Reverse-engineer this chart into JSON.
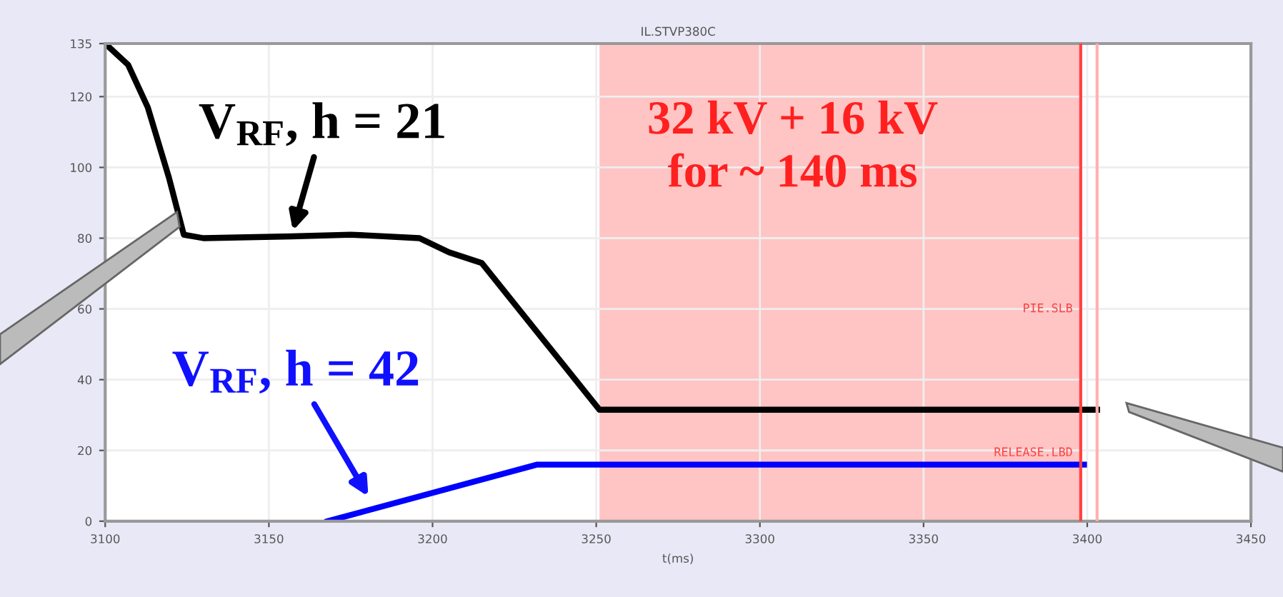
{
  "chart_data": {
    "type": "line",
    "title": "IL.STVP380C",
    "xlabel": "t(ms)",
    "xlim": [
      3100,
      3450
    ],
    "xticks": [
      3100,
      3150,
      3200,
      3250,
      3300,
      3350,
      3400,
      3450
    ],
    "ylim": [
      0,
      135
    ],
    "yticks": [
      0,
      20,
      40,
      60,
      80,
      100,
      120,
      135
    ],
    "grid": true,
    "line_style": "solid",
    "marker": "none",
    "series": [
      {
        "color": "#000000",
        "x": [
          3100,
          3107,
          3113,
          3119.5,
          3124,
          3130,
          3157,
          3175,
          3196,
          3205,
          3215,
          3251,
          3403
        ],
        "values": [
          135,
          129,
          117,
          97,
          81,
          80,
          80.5,
          81,
          80,
          76,
          73,
          31.5,
          31.5
        ]
      },
      {
        "color": "#0000ff",
        "x": [
          3168,
          3232,
          3399
        ],
        "values": [
          0,
          16,
          16
        ]
      }
    ],
    "bands": [
      {
        "axis": "x",
        "from": 3251,
        "to": 3398,
        "color": "#ffc4c4"
      }
    ],
    "ref_lines": [
      {
        "axis": "x",
        "value": 3398,
        "label": "PIE.SLB",
        "color": "#ff4040"
      },
      {
        "axis": "x",
        "value": 3403,
        "color": "#ffb0b0"
      }
    ],
    "annotations": [
      {
        "text": "V$_{RF}$, h = 21",
        "x": 3157,
        "y": 81
      },
      {
        "text": "V$_{RF}$, h = 42",
        "x": 3181,
        "y": 6
      },
      "32 kV + 16 kV\nfor ~ 140 ms",
      {
        "text": "RELEASE.LBD",
        "x": 3398,
        "y": 16
      }
    ]
  }
}
